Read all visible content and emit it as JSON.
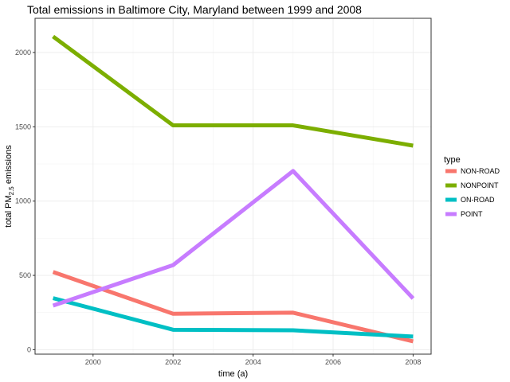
{
  "chart_data": {
    "type": "line",
    "title": "Total emissions in Baltimore City, Maryland between 1999 and 2008",
    "xlabel": "time (a)",
    "ylabel": {
      "prefix": "total PM",
      "subscript": "2.5",
      "suffix": " emissions"
    },
    "x": [
      1999,
      2002,
      2005,
      2008
    ],
    "xlim": [
      1998.55,
      2008.45
    ],
    "ylim": [
      -30,
      2230
    ],
    "x_ticks": [
      2000,
      2002,
      2004,
      2006,
      2008
    ],
    "x_tick_labels": [
      "2000",
      "2002",
      "2004",
      "2006",
      "2008"
    ],
    "y_ticks": [
      0,
      500,
      1000,
      1500,
      2000
    ],
    "y_tick_labels": [
      "0",
      "500",
      "1000",
      "1500",
      "2000"
    ],
    "grid": true,
    "legend": {
      "title": "type",
      "placement": "right"
    },
    "series": [
      {
        "name": "NON-ROAD",
        "color": "#F8766D",
        "values": [
          522.9,
          242.0,
          248.9,
          55.8
        ]
      },
      {
        "name": "NONPOINT",
        "color": "#7CAE00",
        "values": [
          2107.6,
          1509.5,
          1509.5,
          1373.2
        ]
      },
      {
        "name": "ON-ROAD",
        "color": "#00BFC4",
        "values": [
          346.8,
          134.3,
          130.4,
          88.3
        ]
      },
      {
        "name": "POINT",
        "color": "#C77CFF",
        "values": [
          296.8,
          569.3,
          1202.5,
          344.98
        ]
      }
    ]
  }
}
